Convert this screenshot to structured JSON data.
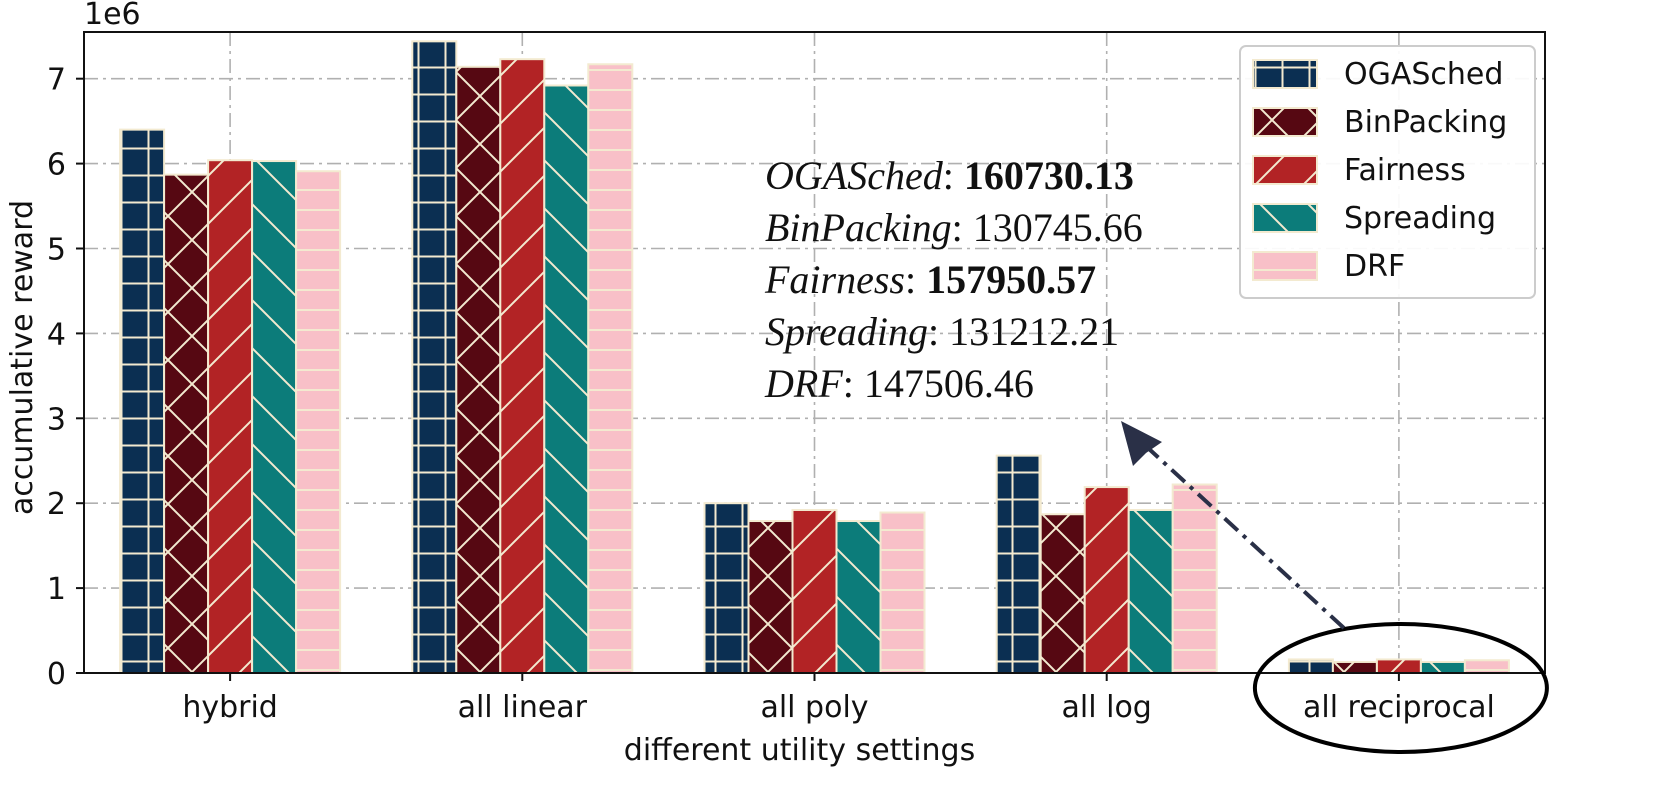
{
  "chart_data": {
    "type": "bar",
    "title": "",
    "xlabel": "different utility settings",
    "ylabel": "accumulative reward",
    "y_scale_label": "1e6",
    "ylim": [
      0,
      7.55
    ],
    "yticks": [
      "0",
      "1",
      "2",
      "3",
      "4",
      "5",
      "6",
      "7"
    ],
    "grid": true,
    "legend_position": "top-right",
    "categories": [
      "hybrid",
      "all linear",
      "all poly",
      "all log",
      "all reciprocal"
    ],
    "series": [
      {
        "name": "OGASched",
        "color": "#0b2f52",
        "hatch": "grid",
        "values": [
          6.4,
          7.44,
          2.0,
          2.56,
          0.16
        ]
      },
      {
        "name": "BinPacking",
        "color": "#560812",
        "hatch": "cross",
        "values": [
          5.87,
          7.14,
          1.79,
          1.87,
          0.13
        ]
      },
      {
        "name": "Fairness",
        "color": "#b22325",
        "hatch": "diag",
        "values": [
          6.04,
          7.23,
          1.92,
          2.19,
          0.16
        ]
      },
      {
        "name": "Spreading",
        "color": "#0c7c7a",
        "hatch": "backdiag",
        "values": [
          6.03,
          6.92,
          1.79,
          1.92,
          0.13
        ]
      },
      {
        "name": "DRF",
        "color": "#f8c0c8",
        "hatch": "horizontal",
        "values": [
          5.91,
          7.17,
          1.89,
          2.22,
          0.15
        ]
      }
    ],
    "annotation": [
      {
        "name": "OGASched",
        "value": "160730.13",
        "bold": true
      },
      {
        "name": "BinPacking",
        "value": "130745.66",
        "bold": false
      },
      {
        "name": "Fairness",
        "value": "157950.57",
        "bold": true
      },
      {
        "name": "Spreading",
        "value": "131212.21",
        "bold": false
      },
      {
        "name": "DRF",
        "value": "147506.46",
        "bold": false
      }
    ],
    "highlight_category": "all reciprocal"
  }
}
